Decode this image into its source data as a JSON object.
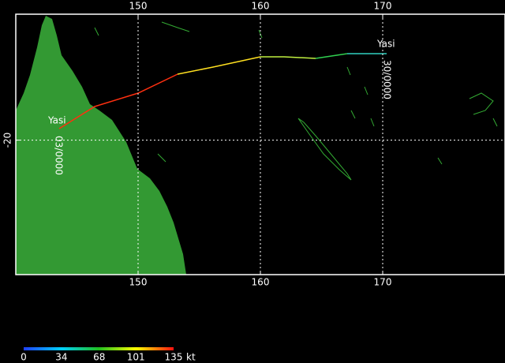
{
  "map": {
    "xlim": [
      140,
      180
    ],
    "ylim": [
      -31,
      -9.7
    ],
    "xticks": [
      150,
      160,
      170
    ],
    "yticks": [
      -20
    ]
  },
  "track": {
    "name": "Yasi",
    "start_label": "30/0000",
    "end_label": "03/0000"
  },
  "colorbar": {
    "ticks": [
      0,
      34,
      68,
      101,
      135
    ],
    "unit": "kt"
  }
}
